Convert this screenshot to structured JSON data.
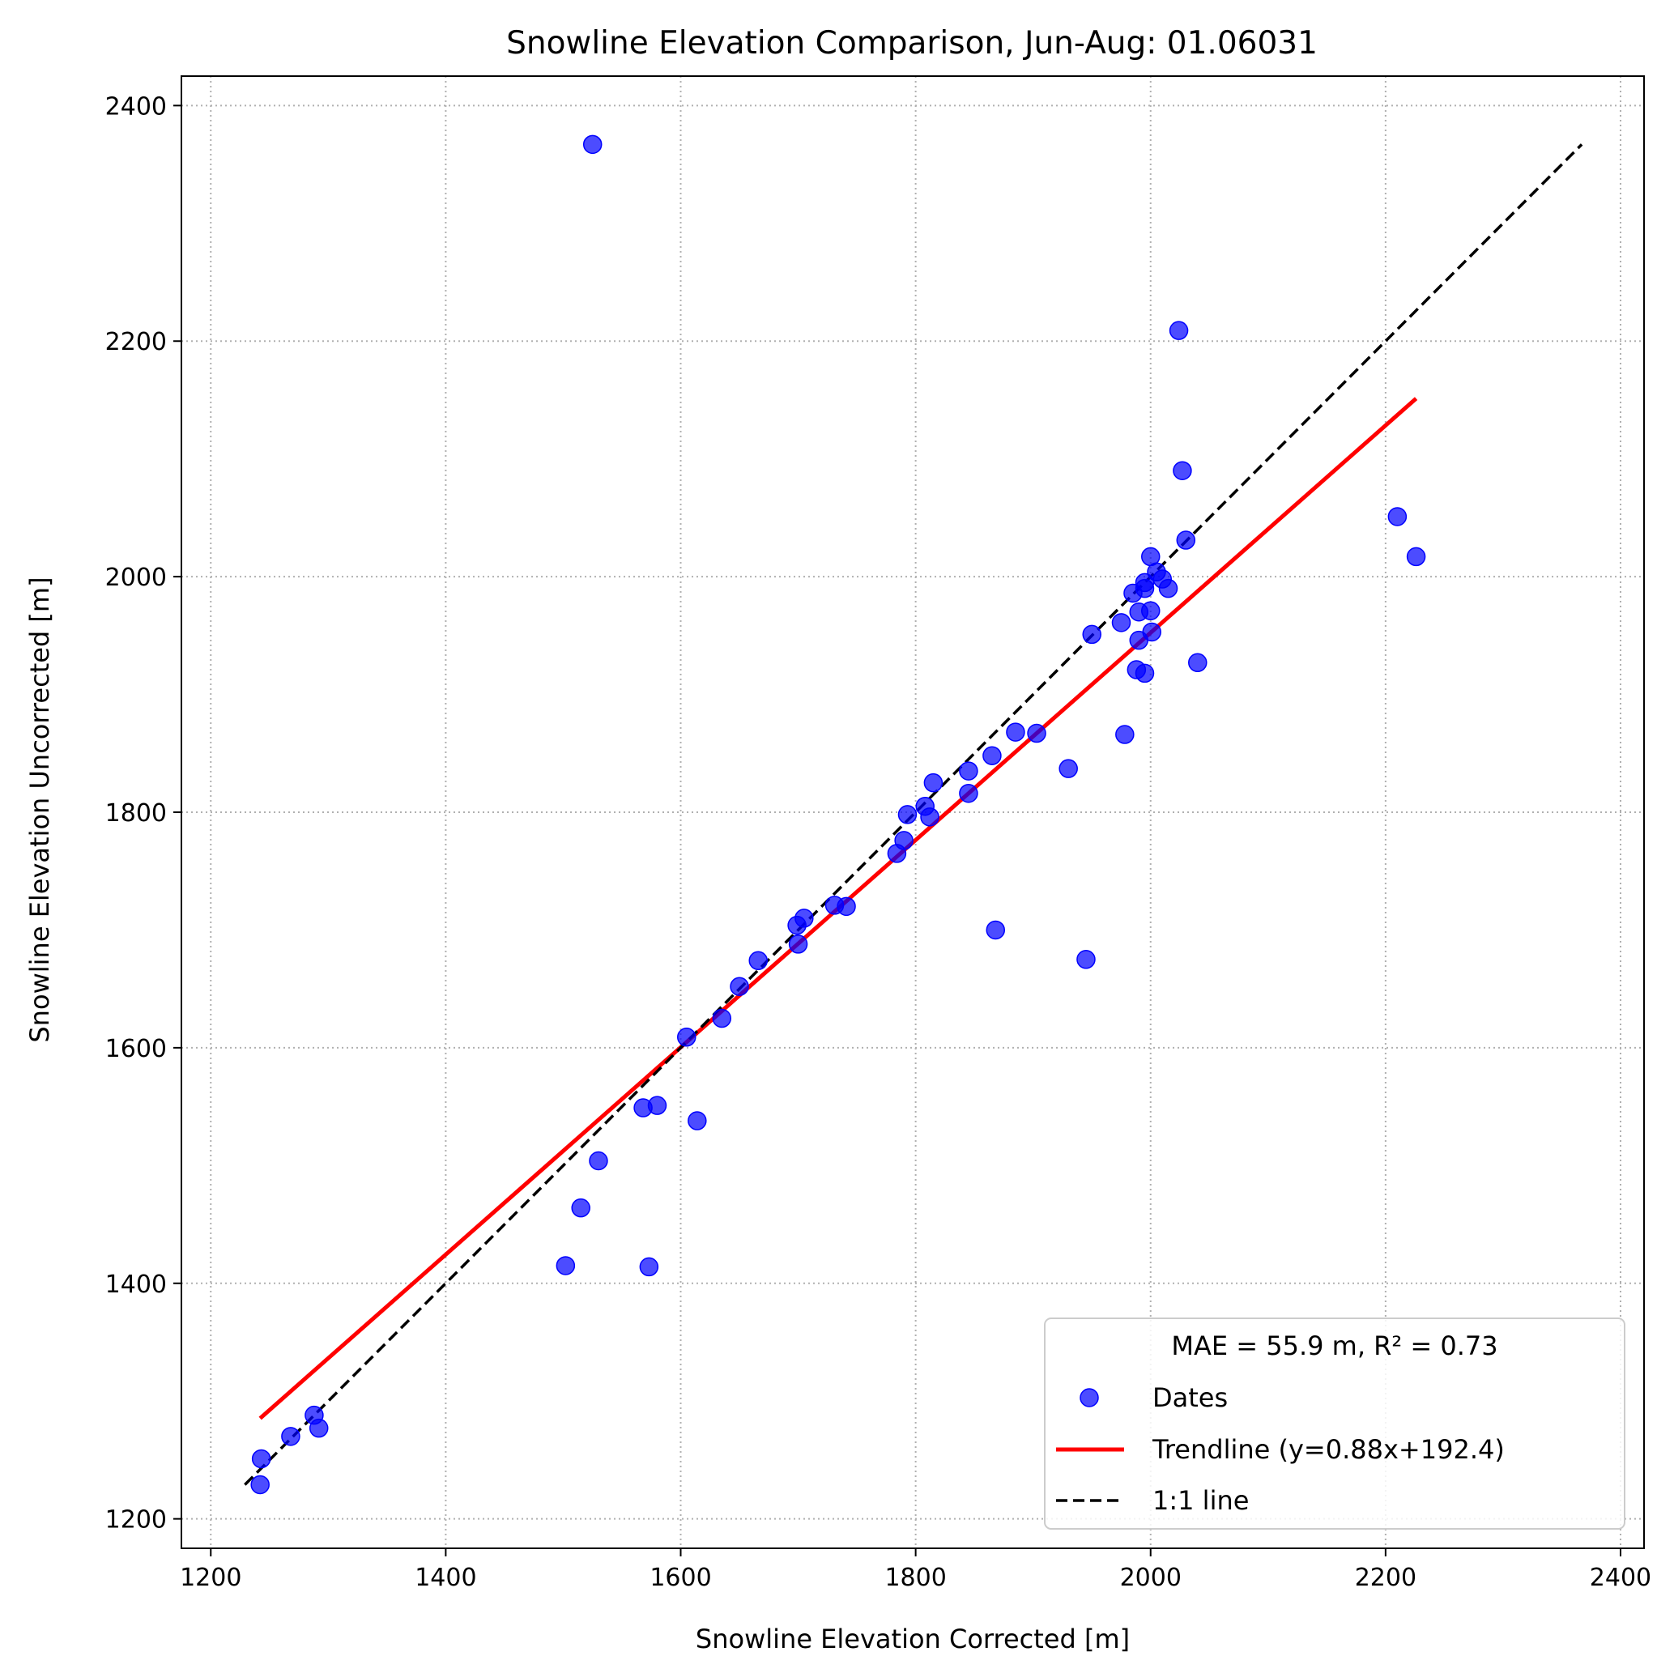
{
  "chart_data": {
    "type": "scatter",
    "title": "Snowline Elevation Comparison, Jun-Aug: 01.06031",
    "xlabel": "Snowline Elevation Corrected [m]",
    "ylabel": "Snowline Elevation Uncorrected [m]",
    "xlim": [
      1175,
      2420
    ],
    "ylim": [
      1175,
      2425
    ],
    "xticks": [
      1200,
      1400,
      1600,
      1800,
      2000,
      2200,
      2400
    ],
    "yticks": [
      1200,
      1400,
      1600,
      1800,
      2000,
      2200,
      2400
    ],
    "grid": true,
    "grid_style": "dotted",
    "legend_placement": "lower-right",
    "legend_title": "MAE = 55.9 m,  R² = 0.73",
    "colors": {
      "points": "#0000ff",
      "trendline": "#ff0000",
      "identity": "#000000"
    },
    "series": [
      {
        "name": "Dates",
        "type": "scatter",
        "points": [
          [
            1525,
            2367
          ],
          [
            2024,
            2209
          ],
          [
            2027,
            2090
          ],
          [
            2210,
            2051
          ],
          [
            2226,
            2017
          ],
          [
            2030,
            2031
          ],
          [
            2000,
            2017
          ],
          [
            2005,
            2004
          ],
          [
            2010,
            1998
          ],
          [
            2015,
            1990
          ],
          [
            1995,
            1995
          ],
          [
            1985,
            1986
          ],
          [
            1995,
            1990
          ],
          [
            2000,
            1971
          ],
          [
            1990,
            1970
          ],
          [
            1975,
            1961
          ],
          [
            1950,
            1951
          ],
          [
            2001,
            1953
          ],
          [
            1990,
            1946
          ],
          [
            2040,
            1927
          ],
          [
            1988,
            1921
          ],
          [
            1995,
            1918
          ],
          [
            1978,
            1866
          ],
          [
            1903,
            1867
          ],
          [
            1885,
            1868
          ],
          [
            1865,
            1848
          ],
          [
            1930,
            1837
          ],
          [
            1845,
            1835
          ],
          [
            1815,
            1825
          ],
          [
            1845,
            1816
          ],
          [
            1808,
            1805
          ],
          [
            1793,
            1798
          ],
          [
            1812,
            1796
          ],
          [
            1790,
            1776
          ],
          [
            1784,
            1765
          ],
          [
            1741,
            1720
          ],
          [
            1731,
            1721
          ],
          [
            1705,
            1710
          ],
          [
            1699,
            1704
          ],
          [
            1868,
            1700
          ],
          [
            1700,
            1688
          ],
          [
            1666,
            1674
          ],
          [
            1945,
            1675
          ],
          [
            1650,
            1652
          ],
          [
            1635,
            1625
          ],
          [
            1605,
            1609
          ],
          [
            1568,
            1549
          ],
          [
            1580,
            1551
          ],
          [
            1614,
            1538
          ],
          [
            1530,
            1504
          ],
          [
            1515,
            1464
          ],
          [
            1502,
            1415
          ],
          [
            1573,
            1414
          ],
          [
            1288,
            1288
          ],
          [
            1292,
            1277
          ],
          [
            1268,
            1270
          ],
          [
            1243,
            1251
          ],
          [
            1242,
            1229
          ]
        ]
      },
      {
        "name": "Trendline (y=0.88x+192.4)",
        "type": "line",
        "slope": 0.88,
        "intercept": 192.4,
        "x_range": [
          1242,
          2226
        ]
      },
      {
        "name": "1:1 line",
        "type": "line",
        "slope": 1,
        "intercept": 0,
        "x_range": [
          1229,
          2367
        ]
      }
    ]
  }
}
